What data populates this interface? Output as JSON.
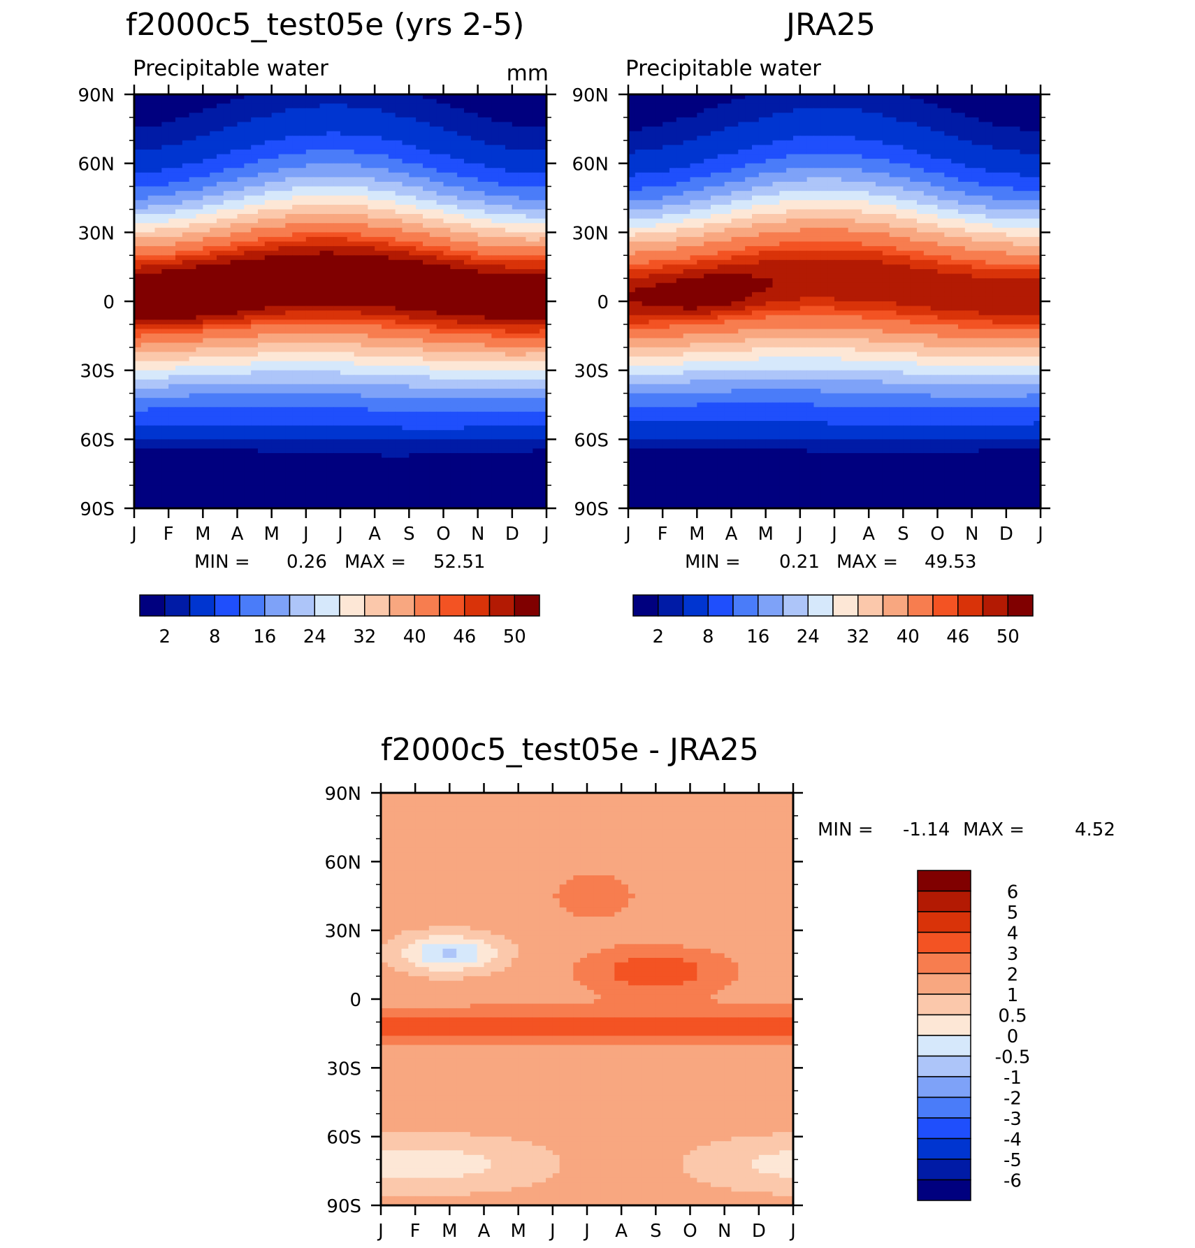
{
  "chart_data": [
    {
      "type": "heatmap",
      "title": "f2000c5_test05e (yrs 2-5)",
      "subtitle": "Precipitable water",
      "units": "mm",
      "x_ticks": [
        "J",
        "F",
        "M",
        "A",
        "M",
        "J",
        "J",
        "A",
        "S",
        "O",
        "N",
        "D",
        "J"
      ],
      "y_ticks": [
        "90N",
        "60N",
        "30N",
        "0",
        "30S",
        "60S",
        "90S"
      ],
      "min_label": "MIN =",
      "min_value": "0.26",
      "max_label": "MAX =",
      "max_value": "52.51",
      "colorbar": {
        "colors": [
          "#00007f",
          "#001ba6",
          "#0035d0",
          "#1f4ffc",
          "#4a7cf9",
          "#7ea2f8",
          "#adc5f9",
          "#d6e8fb",
          "#fde7d6",
          "#fbc8ab",
          "#f8a780",
          "#f77d4f",
          "#f35323",
          "#d93309",
          "#b31a03",
          "#800000"
        ],
        "labels": [
          "2",
          "8",
          "16",
          "24",
          "32",
          "40",
          "46",
          "50"
        ]
      },
      "field": {
        "lat_max": 90,
        "lat_min": -90,
        "months": 13,
        "description_params": {
          "itcz_peak_lat": [
            -2,
            10
          ],
          "peak_value": 52.51,
          "min_value": 0.26
        }
      }
    },
    {
      "type": "heatmap",
      "title": "JRA25",
      "subtitle": "Precipitable water",
      "x_ticks": [
        "J",
        "F",
        "M",
        "A",
        "M",
        "J",
        "J",
        "A",
        "S",
        "O",
        "N",
        "D",
        "J"
      ],
      "y_ticks": [
        "90N",
        "60N",
        "30N",
        "0",
        "30S",
        "60S",
        "90S"
      ],
      "min_label": "MIN =",
      "min_value": "0.21",
      "max_label": "MAX =",
      "max_value": "49.53",
      "colorbar": {
        "colors": [
          "#00007f",
          "#001ba6",
          "#0035d0",
          "#1f4ffc",
          "#4a7cf9",
          "#7ea2f8",
          "#adc5f9",
          "#d6e8fb",
          "#fde7d6",
          "#fbc8ab",
          "#f8a780",
          "#f77d4f",
          "#f35323",
          "#d93309",
          "#b31a03",
          "#800000"
        ],
        "labels": [
          "2",
          "8",
          "16",
          "24",
          "32",
          "40",
          "46",
          "50"
        ]
      }
    },
    {
      "type": "heatmap",
      "title": "f2000c5_test05e - JRA25",
      "x_ticks": [
        "J",
        "F",
        "M",
        "A",
        "M",
        "J",
        "J",
        "A",
        "S",
        "O",
        "N",
        "D",
        "J"
      ],
      "y_ticks": [
        "90N",
        "60N",
        "30N",
        "0",
        "30S",
        "60S",
        "90S"
      ],
      "min_label": "MIN =",
      "min_value": "-1.14",
      "max_label": "MAX =",
      "max_value": "4.52",
      "colorbar": {
        "colors": [
          "#00007f",
          "#001ba6",
          "#0035d0",
          "#1f4ffc",
          "#4a7cf9",
          "#7ea2f8",
          "#adc5f9",
          "#d6e8fb",
          "#fde7d6",
          "#fbc8ab",
          "#f8a780",
          "#f77d4f",
          "#f35323",
          "#d93309",
          "#b31a03",
          "#800000"
        ],
        "labels": [
          "6",
          "5",
          "4",
          "3",
          "2",
          "1",
          "0.5",
          "0",
          "-0.5",
          "-1",
          "-2",
          "-3",
          "-4",
          "-5",
          "-6"
        ]
      }
    }
  ]
}
